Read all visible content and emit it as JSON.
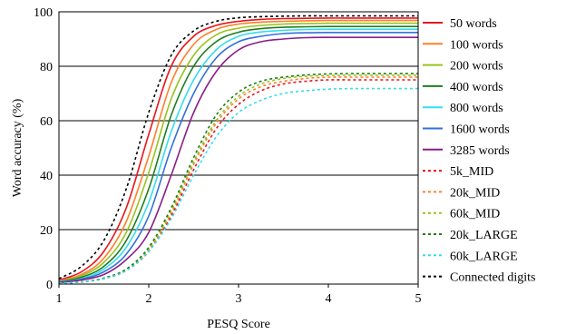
{
  "chart_data": {
    "type": "line",
    "xlabel": "PESQ Score",
    "ylabel": "Word accuracy (%)",
    "xlim": [
      1,
      5
    ],
    "ylim": [
      0,
      100
    ],
    "x_ticks": [
      "1",
      "2",
      "3",
      "4",
      "5"
    ],
    "y_ticks": [
      "0",
      "20",
      "40",
      "60",
      "80",
      "100"
    ],
    "grid": "horizontal",
    "legend_position": "right",
    "x": [
      1.0,
      1.25,
      1.5,
      1.75,
      2.0,
      2.25,
      2.5,
      2.75,
      3.0,
      3.25,
      3.5,
      3.75,
      4.0,
      4.25,
      4.5,
      4.75,
      5.0
    ],
    "series": [
      {
        "name": "50 words",
        "color": "#e8141c",
        "dash": "solid",
        "values": [
          1.5,
          4.5,
          12,
          28,
          55,
          80,
          91,
          95,
          96.5,
          97.2,
          97.5,
          97.6,
          97.7,
          97.7,
          97.7,
          97.7,
          97.7
        ]
      },
      {
        "name": "100 words",
        "color": "#ff7f27",
        "dash": "solid",
        "values": [
          1.2,
          3.5,
          9.5,
          23,
          47,
          74,
          88,
          93.5,
          95.5,
          96.2,
          96.5,
          96.7,
          96.8,
          96.8,
          96.8,
          96.8,
          96.8
        ]
      },
      {
        "name": "200 words",
        "color": "#99c31c",
        "dash": "solid",
        "values": [
          1,
          3,
          8,
          19,
          41,
          68,
          84,
          91.5,
          94,
          95,
          95.5,
          95.7,
          95.8,
          95.8,
          95.8,
          95.8,
          95.8
        ]
      },
      {
        "name": "400 words",
        "color": "#1f7d1f",
        "dash": "solid",
        "values": [
          0.9,
          2.5,
          6.5,
          16,
          35,
          62,
          80,
          89,
          92.5,
          93.8,
          94.3,
          94.5,
          94.6,
          94.6,
          94.6,
          94.6,
          94.6
        ]
      },
      {
        "name": "800 words",
        "color": "#33ddee",
        "dash": "solid",
        "values": [
          0.8,
          2,
          5.5,
          13.5,
          30,
          56,
          75,
          86,
          91,
          92.6,
          93.2,
          93.5,
          93.6,
          93.6,
          93.6,
          93.6,
          93.6
        ]
      },
      {
        "name": "1600 words",
        "color": "#3370dd",
        "dash": "solid",
        "values": [
          0.7,
          1.8,
          4.5,
          11,
          25,
          50,
          70,
          83,
          89,
          91,
          92,
          92.3,
          92.4,
          92.4,
          92.4,
          92.4,
          92.4
        ]
      },
      {
        "name": "3285 words",
        "color": "#881f88",
        "dash": "solid",
        "values": [
          0.5,
          1.5,
          3.5,
          9,
          19,
          40,
          63,
          78,
          86,
          89,
          90,
          90.5,
          90.6,
          90.6,
          90.6,
          90.6,
          90.6
        ]
      },
      {
        "name": "5k_MID",
        "color": "#e8141c",
        "dash": "dashed",
        "values": [
          0.3,
          0.8,
          2,
          5,
          12,
          25,
          42,
          57,
          66,
          71,
          73.5,
          74.5,
          75,
          75,
          75,
          75,
          75
        ]
      },
      {
        "name": "20k_MID",
        "color": "#ff7f27",
        "dash": "dashed",
        "values": [
          0.3,
          0.8,
          2,
          5,
          12.5,
          26,
          44,
          59,
          68,
          72.5,
          74.5,
          75.5,
          76,
          76,
          76,
          76,
          76
        ]
      },
      {
        "name": "60k_MID",
        "color": "#99c31c",
        "dash": "dashed",
        "values": [
          0.3,
          0.8,
          2.2,
          5.5,
          13,
          27,
          45,
          60,
          69,
          73.5,
          75.5,
          76.3,
          76.6,
          76.7,
          76.7,
          76.7,
          76.7
        ]
      },
      {
        "name": "20k_LARGE",
        "color": "#1f7d1f",
        "dash": "dashed",
        "values": [
          0.3,
          0.8,
          2.2,
          5.5,
          13.5,
          28,
          46.5,
          62,
          70.5,
          74.5,
          76,
          76.8,
          77.2,
          77.3,
          77.3,
          77.3,
          77.3
        ]
      },
      {
        "name": "60k_LARGE",
        "color": "#33ddee",
        "dash": "dashed",
        "values": [
          0.3,
          0.8,
          2,
          5,
          12,
          24,
          40,
          54,
          63,
          67.5,
          70,
          71,
          71.6,
          71.8,
          71.8,
          71.8,
          71.8
        ]
      },
      {
        "name": "Connected digits",
        "color": "#000000",
        "dash": "dashed",
        "values": [
          2,
          6.5,
          16,
          35,
          63,
          84,
          93,
          96.5,
          97.8,
          98.2,
          98.4,
          98.5,
          98.5,
          98.5,
          98.5,
          98.5,
          98.5
        ]
      }
    ]
  }
}
